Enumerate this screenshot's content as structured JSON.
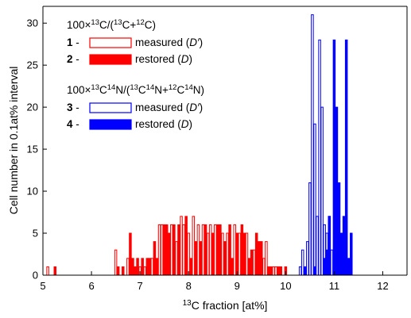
{
  "chart_data": {
    "type": "bar",
    "xlabel_parts": [
      "13",
      "C fraction [at%]"
    ],
    "ylabel": "Cell number in 0.1at% interval",
    "xlim": [
      5,
      12.5
    ],
    "ylim": [
      0,
      32
    ],
    "x_ticks": [
      5,
      6,
      7,
      8,
      9,
      10,
      11,
      12
    ],
    "y_ticks": [
      0,
      5,
      10,
      15,
      20,
      25,
      30
    ],
    "bin_width": 0.05,
    "series": [
      {
        "id": "1",
        "name": "measured (D′)",
        "group": "C",
        "color": "#ff0000",
        "style": "outline",
        "points": [
          [
            5.1,
            1
          ],
          [
            6.5,
            3
          ],
          [
            6.75,
            2
          ],
          [
            7.0,
            1
          ],
          [
            7.1,
            1
          ],
          [
            7.25,
            2
          ],
          [
            7.4,
            6
          ],
          [
            7.45,
            6
          ],
          [
            7.65,
            6
          ],
          [
            7.75,
            4
          ],
          [
            7.85,
            7
          ],
          [
            7.9,
            6
          ],
          [
            8.0,
            5
          ],
          [
            8.1,
            7
          ],
          [
            8.2,
            6
          ],
          [
            8.3,
            6
          ],
          [
            8.4,
            5
          ],
          [
            8.45,
            6
          ],
          [
            8.55,
            6
          ],
          [
            8.7,
            5
          ],
          [
            8.8,
            5
          ],
          [
            8.95,
            6
          ],
          [
            9.05,
            5
          ],
          [
            9.2,
            5
          ],
          [
            9.35,
            3
          ],
          [
            9.55,
            2
          ],
          [
            9.6,
            4
          ],
          [
            9.75,
            1
          ],
          [
            9.8,
            1
          ]
        ]
      },
      {
        "id": "2",
        "name": "restored (D)",
        "group": "C",
        "color": "#ff0000",
        "style": "filled",
        "points": [
          [
            5.25,
            1
          ],
          [
            6.55,
            1
          ],
          [
            6.65,
            1
          ],
          [
            6.8,
            5
          ],
          [
            6.85,
            2
          ],
          [
            6.9,
            1
          ],
          [
            6.95,
            2
          ],
          [
            7.05,
            2
          ],
          [
            7.15,
            2
          ],
          [
            7.2,
            2
          ],
          [
            7.3,
            4
          ],
          [
            7.35,
            2
          ],
          [
            7.5,
            6
          ],
          [
            7.55,
            6
          ],
          [
            7.6,
            5
          ],
          [
            7.7,
            6
          ],
          [
            7.8,
            6
          ],
          [
            7.95,
            7
          ],
          [
            8.05,
            2
          ],
          [
            8.15,
            4
          ],
          [
            8.25,
            4
          ],
          [
            8.35,
            6
          ],
          [
            8.5,
            5
          ],
          [
            8.6,
            6
          ],
          [
            8.65,
            6
          ],
          [
            8.75,
            4
          ],
          [
            8.85,
            6
          ],
          [
            8.9,
            2
          ],
          [
            9.0,
            5
          ],
          [
            9.1,
            6
          ],
          [
            9.15,
            5
          ],
          [
            9.25,
            2
          ],
          [
            9.3,
            3
          ],
          [
            9.4,
            5
          ],
          [
            9.45,
            4
          ],
          [
            9.5,
            4
          ],
          [
            9.65,
            1
          ],
          [
            9.7,
            1
          ],
          [
            9.85,
            1
          ],
          [
            9.9,
            1
          ],
          [
            10.0,
            1
          ]
        ]
      },
      {
        "id": "3",
        "name": "measured (D′)",
        "group": "CN",
        "color": "#0000ff",
        "style": "outline",
        "points": [
          [
            10.3,
            1
          ],
          [
            10.35,
            3
          ],
          [
            10.45,
            4
          ],
          [
            10.5,
            11
          ],
          [
            10.55,
            31
          ],
          [
            10.6,
            18
          ],
          [
            10.65,
            7
          ],
          [
            10.7,
            28
          ],
          [
            10.75,
            20
          ],
          [
            10.8,
            6
          ],
          [
            10.85,
            5
          ],
          [
            10.9,
            7
          ],
          [
            10.95,
            3
          ],
          [
            11.05,
            2
          ],
          [
            11.1,
            2
          ],
          [
            11.15,
            1
          ]
        ]
      },
      {
        "id": "4",
        "name": "restored (D)",
        "group": "CN",
        "color": "#0000ff",
        "style": "filled",
        "points": [
          [
            10.4,
            1
          ],
          [
            10.6,
            1
          ],
          [
            10.8,
            2
          ],
          [
            10.85,
            3
          ],
          [
            10.9,
            7
          ],
          [
            11.0,
            28
          ],
          [
            11.05,
            20
          ],
          [
            11.1,
            11
          ],
          [
            11.15,
            5
          ],
          [
            11.2,
            7
          ],
          [
            11.25,
            28
          ],
          [
            11.3,
            2
          ],
          [
            11.35,
            5
          ]
        ]
      }
    ]
  },
  "legend": {
    "group_c_title": {
      "base": "100×",
      "sup1": "13",
      "mid1": "C/(",
      "sup2": "13",
      "mid2": "C+",
      "sup3": "12",
      "end": "C)"
    },
    "group_cn_title": {
      "base": "100×",
      "sup1": "13",
      "mid1": "C",
      "sup2": "14",
      "mid2": "N/(",
      "sup3": "13",
      "mid3": "C",
      "sup4": "14",
      "mid4": "N+",
      "sup5": "12",
      "mid5": "C",
      "sup6": "14",
      "end": "N)"
    },
    "dash": " - ",
    "items": [
      {
        "num": "1",
        "label_main": "measured (",
        "label_ital": "D′",
        "label_end": ")"
      },
      {
        "num": "2",
        "label_main": "restored (",
        "label_ital": "D",
        "label_end": ")"
      },
      {
        "num": "3",
        "label_main": "measured (",
        "label_ital": "D′",
        "label_end": ")"
      },
      {
        "num": "4",
        "label_main": "restored (",
        "label_ital": "D",
        "label_end": ")"
      }
    ]
  }
}
